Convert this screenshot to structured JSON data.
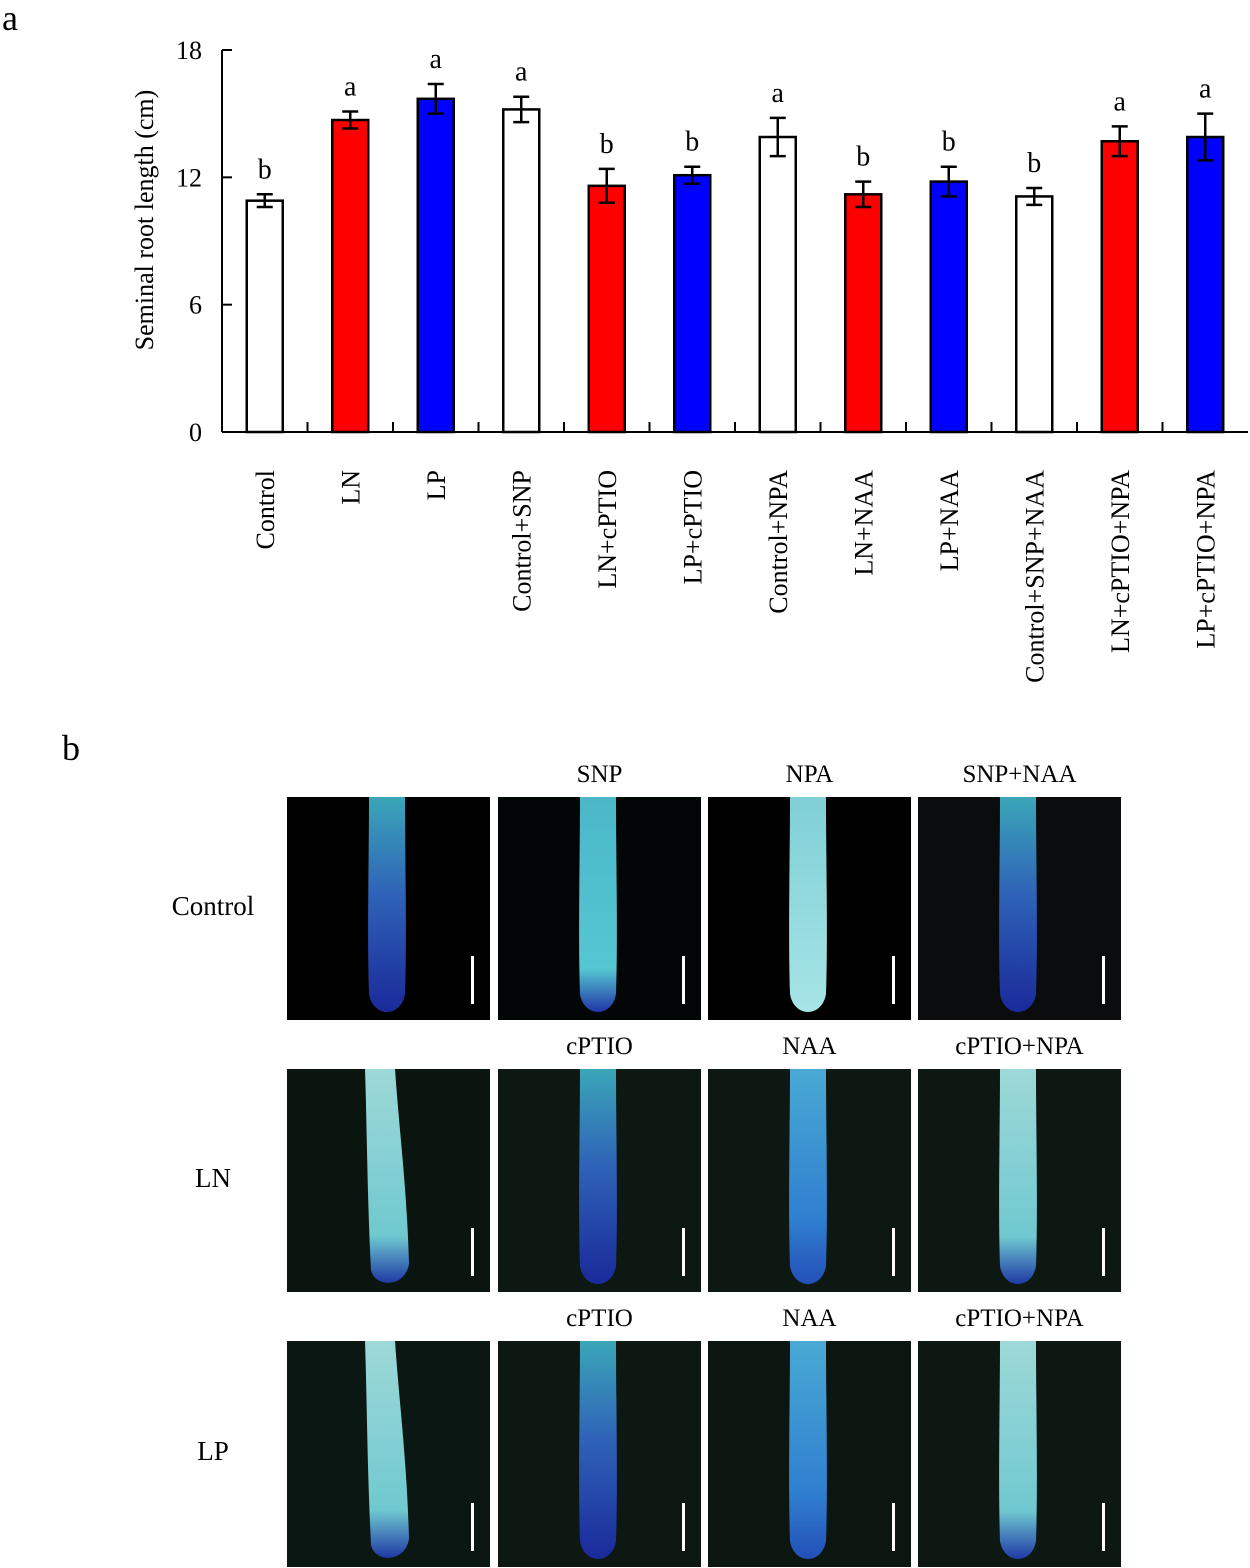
{
  "panel_labels": {
    "a": "a",
    "b": "b"
  },
  "chart_data": {
    "type": "bar",
    "ylabel": "Seminal root length (cm)",
    "ylim": [
      0,
      18
    ],
    "yticks": [
      0,
      6,
      12,
      18
    ],
    "categories": [
      "Control",
      "LN",
      "LP",
      "Control+SNP",
      "LN+cPTIO",
      "LP+cPTIO",
      "Control+NPA",
      "LN+NAA",
      "LP+NAA",
      "Control+SNP+NAA",
      "LN+cPTIO+NPA",
      "LP+cPTIO+NPA"
    ],
    "values": [
      10.9,
      14.7,
      15.7,
      15.2,
      11.6,
      12.1,
      13.9,
      11.2,
      11.8,
      11.1,
      13.7,
      13.9
    ],
    "errors": [
      0.3,
      0.4,
      0.7,
      0.6,
      0.8,
      0.4,
      0.9,
      0.6,
      0.7,
      0.4,
      0.7,
      1.1
    ],
    "significance": [
      "b",
      "a",
      "a",
      "a",
      "b",
      "b",
      "a",
      "b",
      "b",
      "b",
      "a",
      "a"
    ],
    "bar_colors": [
      "#ffffff",
      "#ff0000",
      "#0000ff",
      "#ffffff",
      "#ff0000",
      "#0000ff",
      "#ffffff",
      "#ff0000",
      "#0000ff",
      "#ffffff",
      "#ff0000",
      "#0000ff"
    ]
  },
  "panel_b": {
    "row_labels": [
      "Control",
      "LN",
      "LP"
    ],
    "column_labels": [
      [
        "",
        "SNP",
        "NPA",
        "SNP+NAA"
      ],
      [
        "",
        "cPTIO",
        "NAA",
        "cPTIO+NPA"
      ],
      [
        "",
        "cPTIO",
        "NAA",
        "cPTIO+NPA"
      ]
    ]
  }
}
